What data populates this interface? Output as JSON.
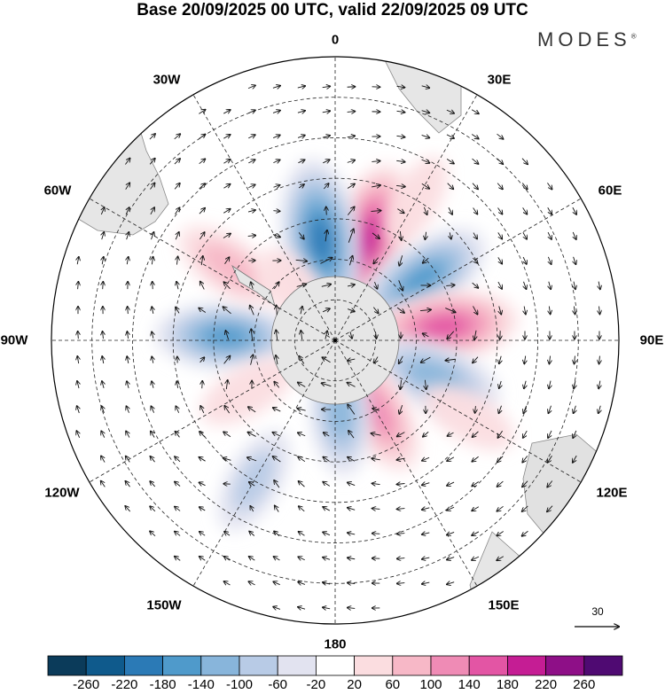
{
  "header": {
    "title": "Base 20/09/2025 00 UTC, valid 22/09/2025 09 UTC",
    "brand": "MODES"
  },
  "longitude_labels": [
    "0",
    "30E",
    "60E",
    "90E",
    "120E",
    "150E",
    "180",
    "150W",
    "120W",
    "90W",
    "60W",
    "30W"
  ],
  "wind_reference": {
    "value": "30"
  },
  "colorbar": {
    "colors": [
      "#0b3b5a",
      "#0f5a8c",
      "#2b7ab6",
      "#4f9acb",
      "#88b5db",
      "#b8cbe6",
      "#e2e3f0",
      "#ffffff",
      "#fbdde0",
      "#f7b8c7",
      "#ef8bb5",
      "#e355a4",
      "#c51d94",
      "#8e0f87",
      "#4f0a72"
    ],
    "tick_labels": [
      "-260",
      "-220",
      "-180",
      "-140",
      "-100",
      "-60",
      "-20",
      "20",
      "60",
      "100",
      "140",
      "180",
      "220",
      "260"
    ]
  },
  "anomalies": [
    {
      "lon": 18,
      "colat": 26,
      "value": 200
    },
    {
      "lon": -8,
      "colat": 25,
      "value": -220
    },
    {
      "lon": 55,
      "colat": 26,
      "value": -180
    },
    {
      "lon": 83,
      "colat": 27,
      "value": 180
    },
    {
      "lon": 110,
      "colat": 26,
      "value": -150
    },
    {
      "lon": 150,
      "colat": 20,
      "value": 140
    },
    {
      "lon": 176,
      "colat": 18,
      "value": -120
    },
    {
      "lon": -88,
      "colat": 27,
      "value": -160
    },
    {
      "lon": -55,
      "colat": 32,
      "value": 90
    },
    {
      "lon": -38,
      "colat": 15,
      "value": 60
    },
    {
      "lon": -120,
      "colat": 25,
      "value": 60
    },
    {
      "lon": -150,
      "colat": 40,
      "value": -80
    },
    {
      "lon": 120,
      "colat": 38,
      "value": 50
    },
    {
      "lon": 30,
      "colat": 40,
      "value": 40
    }
  ]
}
